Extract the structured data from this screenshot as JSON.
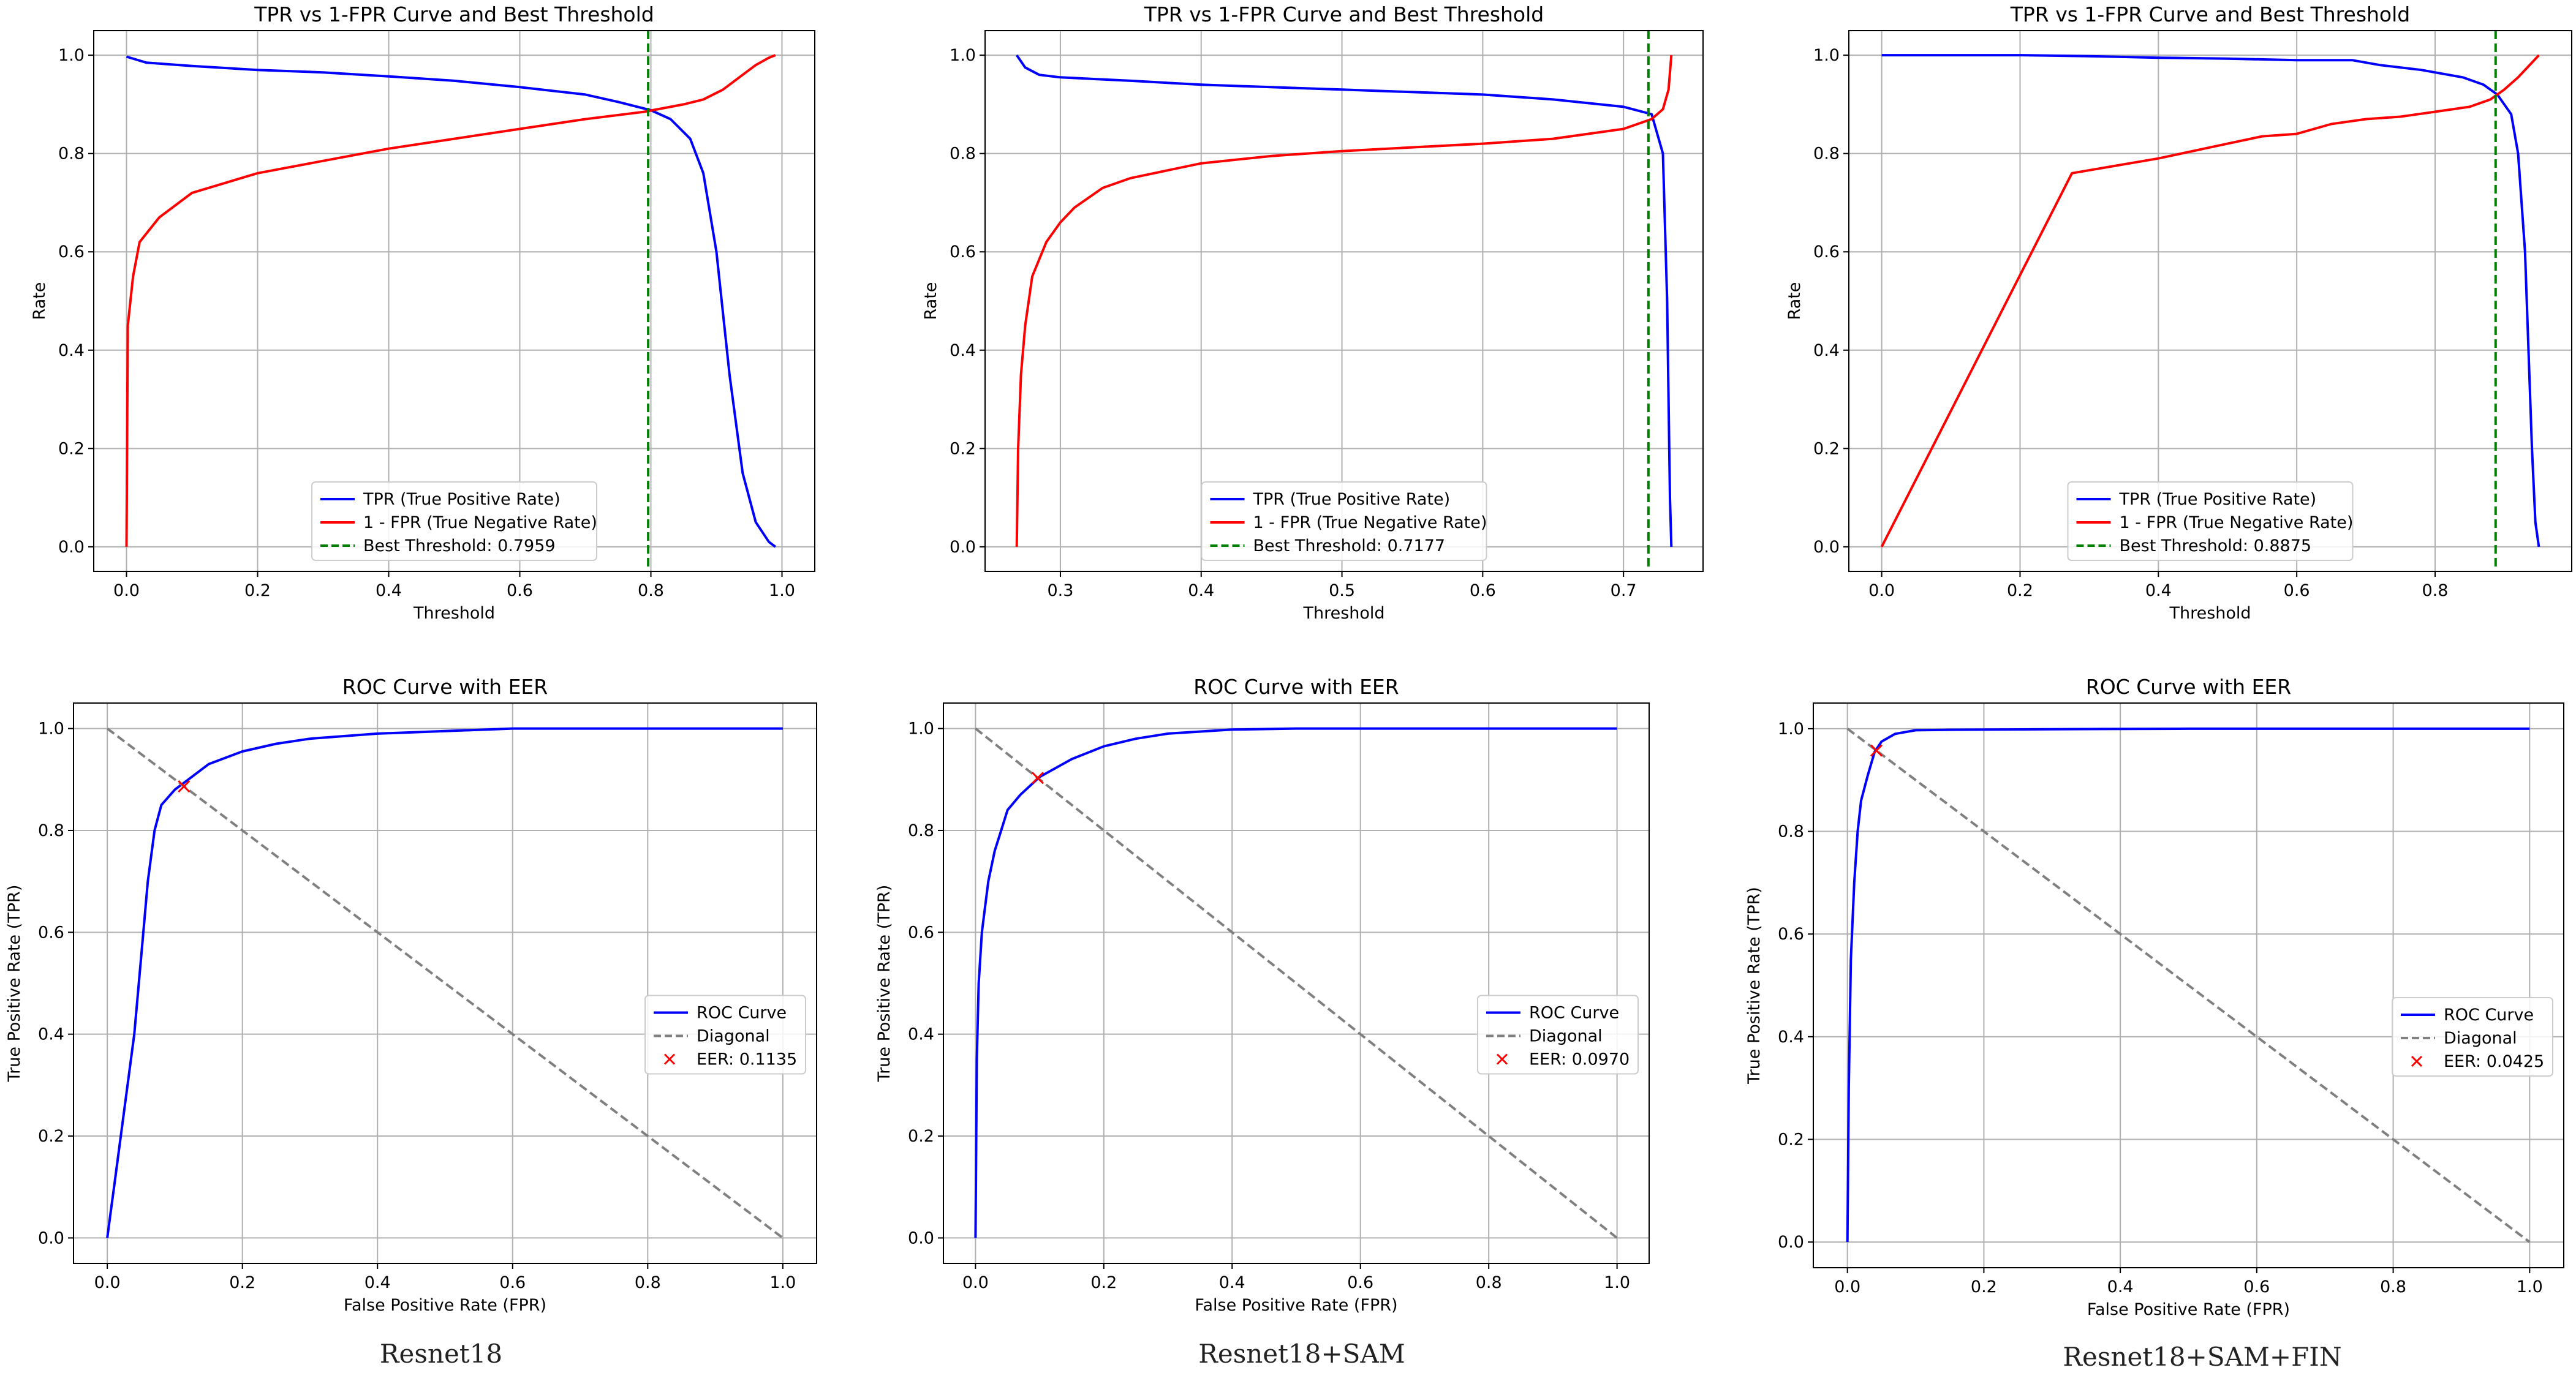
{
  "figure": {
    "captions": [
      "Resnet18",
      "Resnet18+SAM",
      "Resnet18+SAM+FIN"
    ]
  },
  "chart_data": [
    {
      "id": "tpr-resnet18",
      "type": "line",
      "title": "TPR vs 1-FPR Curve and Best Threshold",
      "xlabel": "Threshold",
      "ylabel": "Rate",
      "xlim": [
        -0.05,
        1.05
      ],
      "ylim": [
        -0.05,
        1.05
      ],
      "xticks": [
        0.0,
        0.2,
        0.4,
        0.6,
        0.8,
        1.0
      ],
      "xtick_labels": [
        "0.0",
        "0.2",
        "0.4",
        "0.6",
        "0.8",
        "1.0"
      ],
      "yticks": [
        0.0,
        0.2,
        0.4,
        0.6,
        0.8,
        1.0
      ],
      "ytick_labels": [
        "0.0",
        "0.2",
        "0.4",
        "0.6",
        "0.8",
        "1.0"
      ],
      "grid": true,
      "legend": {
        "placement": "lower-center",
        "entries": [
          "TPR (True Positive Rate)",
          "1 - FPR (True Negative Rate)",
          "Best Threshold: 0.7959"
        ]
      },
      "series": [
        {
          "name": "TPR (True Positive Rate)",
          "color": "#0000ff",
          "style": "solid",
          "x": [
            0.0,
            0.03,
            0.1,
            0.2,
            0.3,
            0.4,
            0.5,
            0.6,
            0.7,
            0.75,
            0.8,
            0.83,
            0.86,
            0.88,
            0.9,
            0.92,
            0.94,
            0.96,
            0.98,
            0.99
          ],
          "y": [
            0.997,
            0.985,
            0.978,
            0.97,
            0.965,
            0.957,
            0.948,
            0.935,
            0.92,
            0.905,
            0.888,
            0.87,
            0.83,
            0.76,
            0.6,
            0.35,
            0.15,
            0.05,
            0.01,
            0.0
          ]
        },
        {
          "name": "1 - FPR (True Negative Rate)",
          "color": "#ff0000",
          "style": "solid",
          "x": [
            0.0,
            0.002,
            0.01,
            0.02,
            0.05,
            0.1,
            0.2,
            0.3,
            0.4,
            0.5,
            0.6,
            0.7,
            0.79,
            0.85,
            0.88,
            0.91,
            0.94,
            0.96,
            0.98,
            0.99
          ],
          "y": [
            0.0,
            0.45,
            0.55,
            0.62,
            0.67,
            0.72,
            0.76,
            0.785,
            0.81,
            0.83,
            0.85,
            0.87,
            0.885,
            0.9,
            0.91,
            0.93,
            0.96,
            0.98,
            0.995,
            1.0
          ]
        }
      ],
      "vline": {
        "x": 0.7959,
        "name": "Best Threshold: 0.7959",
        "color": "#008000"
      }
    },
    {
      "id": "tpr-resnet18-sam",
      "type": "line",
      "title": "TPR vs 1-FPR Curve and Best Threshold",
      "xlabel": "Threshold",
      "ylabel": "Rate",
      "xlim": [
        0.2465,
        0.7565
      ],
      "ylim": [
        -0.05,
        1.05
      ],
      "xticks": [
        0.3,
        0.4,
        0.5,
        0.6,
        0.7
      ],
      "xtick_labels": [
        "0.3",
        "0.4",
        "0.5",
        "0.6",
        "0.7"
      ],
      "yticks": [
        0.0,
        0.2,
        0.4,
        0.6,
        0.8,
        1.0
      ],
      "ytick_labels": [
        "0.0",
        "0.2",
        "0.4",
        "0.6",
        "0.8",
        "1.0"
      ],
      "grid": true,
      "legend": {
        "placement": "lower-center",
        "entries": [
          "TPR (True Positive Rate)",
          "1 - FPR (True Negative Rate)",
          "Best Threshold: 0.7177"
        ]
      },
      "series": [
        {
          "name": "TPR (True Positive Rate)",
          "color": "#0000ff",
          "style": "solid",
          "x": [
            0.269,
            0.275,
            0.285,
            0.3,
            0.35,
            0.4,
            0.5,
            0.6,
            0.65,
            0.7,
            0.72,
            0.728,
            0.731,
            0.733,
            0.734
          ],
          "y": [
            1.0,
            0.975,
            0.96,
            0.955,
            0.948,
            0.94,
            0.93,
            0.92,
            0.91,
            0.895,
            0.88,
            0.8,
            0.5,
            0.1,
            0.0
          ]
        },
        {
          "name": "1 - FPR (True Negative Rate)",
          "color": "#ff0000",
          "style": "solid",
          "x": [
            0.269,
            0.27,
            0.272,
            0.275,
            0.28,
            0.29,
            0.3,
            0.31,
            0.33,
            0.35,
            0.4,
            0.45,
            0.5,
            0.6,
            0.65,
            0.7,
            0.72,
            0.728,
            0.732,
            0.734
          ],
          "y": [
            0.0,
            0.2,
            0.35,
            0.45,
            0.55,
            0.62,
            0.66,
            0.69,
            0.73,
            0.75,
            0.78,
            0.795,
            0.805,
            0.82,
            0.83,
            0.85,
            0.87,
            0.89,
            0.93,
            1.0
          ]
        }
      ],
      "vline": {
        "x": 0.7177,
        "name": "Best Threshold: 0.7177",
        "color": "#008000"
      }
    },
    {
      "id": "tpr-resnet18-sam-fin",
      "type": "line",
      "title": "TPR vs 1-FPR Curve and Best Threshold",
      "xlabel": "Threshold",
      "ylabel": "Rate",
      "xlim": [
        -0.0475,
        0.9975
      ],
      "ylim": [
        -0.05,
        1.05
      ],
      "xticks": [
        0.0,
        0.2,
        0.4,
        0.6,
        0.8
      ],
      "xtick_labels": [
        "0.0",
        "0.2",
        "0.4",
        "0.6",
        "0.8"
      ],
      "yticks": [
        0.0,
        0.2,
        0.4,
        0.6,
        0.8,
        1.0
      ],
      "ytick_labels": [
        "0.0",
        "0.2",
        "0.4",
        "0.6",
        "0.8",
        "1.0"
      ],
      "grid": true,
      "legend": {
        "placement": "lower-center",
        "entries": [
          "TPR (True Positive Rate)",
          "1 - FPR (True Negative Rate)",
          "Best Threshold: 0.8875"
        ]
      },
      "series": [
        {
          "name": "TPR (True Positive Rate)",
          "color": "#0000ff",
          "style": "solid",
          "x": [
            0.0,
            0.2,
            0.3,
            0.4,
            0.5,
            0.6,
            0.68,
            0.72,
            0.78,
            0.84,
            0.87,
            0.89,
            0.91,
            0.92,
            0.93,
            0.94,
            0.945,
            0.95
          ],
          "y": [
            1.0,
            1.0,
            0.998,
            0.995,
            0.993,
            0.99,
            0.99,
            0.98,
            0.97,
            0.955,
            0.94,
            0.92,
            0.88,
            0.8,
            0.6,
            0.2,
            0.05,
            0.0
          ]
        },
        {
          "name": "1 - FPR (True Negative Rate)",
          "color": "#ff0000",
          "style": "solid",
          "x": [
            0.0,
            0.275,
            0.4,
            0.5,
            0.55,
            0.6,
            0.65,
            0.7,
            0.75,
            0.8,
            0.85,
            0.88,
            0.9,
            0.92,
            0.94,
            0.95
          ],
          "y": [
            0.0,
            0.76,
            0.79,
            0.82,
            0.835,
            0.84,
            0.86,
            0.87,
            0.875,
            0.885,
            0.895,
            0.91,
            0.93,
            0.955,
            0.985,
            1.0
          ]
        }
      ],
      "vline": {
        "x": 0.8875,
        "name": "Best Threshold: 0.8875",
        "color": "#008000"
      }
    },
    {
      "id": "roc-resnet18",
      "type": "line",
      "title": "ROC Curve with EER",
      "xlabel": "False Positive Rate (FPR)",
      "ylabel": "True Positive Rate (TPR)",
      "xlim": [
        -0.05,
        1.05
      ],
      "ylim": [
        -0.05,
        1.05
      ],
      "xticks": [
        0.0,
        0.2,
        0.4,
        0.6,
        0.8,
        1.0
      ],
      "xtick_labels": [
        "0.0",
        "0.2",
        "0.4",
        "0.6",
        "0.8",
        "1.0"
      ],
      "yticks": [
        0.0,
        0.2,
        0.4,
        0.6,
        0.8,
        1.0
      ],
      "ytick_labels": [
        "0.0",
        "0.2",
        "0.4",
        "0.6",
        "0.8",
        "1.0"
      ],
      "grid": true,
      "legend": {
        "placement": "center-right",
        "entries": [
          "ROC Curve",
          "Diagonal",
          "EER: 0.1135"
        ]
      },
      "series": [
        {
          "name": "ROC Curve",
          "color": "#0000ff",
          "style": "solid",
          "x": [
            0.0,
            0.005,
            0.01,
            0.02,
            0.03,
            0.04,
            0.05,
            0.06,
            0.07,
            0.08,
            0.1,
            0.12,
            0.15,
            0.2,
            0.25,
            0.3,
            0.4,
            0.5,
            0.6,
            0.8,
            1.0
          ],
          "y": [
            0.0,
            0.05,
            0.1,
            0.2,
            0.3,
            0.4,
            0.55,
            0.7,
            0.8,
            0.85,
            0.88,
            0.9,
            0.93,
            0.955,
            0.97,
            0.98,
            0.99,
            0.995,
            1.0,
            1.0,
            1.0
          ]
        },
        {
          "name": "Diagonal",
          "color": "#808080",
          "style": "dashed",
          "x": [
            0.0,
            1.0
          ],
          "y": [
            1.0,
            0.0
          ]
        }
      ],
      "marker": {
        "name": "EER: 0.1135",
        "x": 0.1135,
        "y": 0.8865,
        "symbol": "x",
        "color": "#ff0000"
      }
    },
    {
      "id": "roc-resnet18-sam",
      "type": "line",
      "title": "ROC Curve with EER",
      "xlabel": "False Positive Rate (FPR)",
      "ylabel": "True Positive Rate (TPR)",
      "xlim": [
        -0.05,
        1.05
      ],
      "ylim": [
        -0.05,
        1.05
      ],
      "xticks": [
        0.0,
        0.2,
        0.4,
        0.6,
        0.8,
        1.0
      ],
      "xtick_labels": [
        "0.0",
        "0.2",
        "0.4",
        "0.6",
        "0.8",
        "1.0"
      ],
      "yticks": [
        0.0,
        0.2,
        0.4,
        0.6,
        0.8,
        1.0
      ],
      "ytick_labels": [
        "0.0",
        "0.2",
        "0.4",
        "0.6",
        "0.8",
        "1.0"
      ],
      "grid": true,
      "legend": {
        "placement": "center-right",
        "entries": [
          "ROC Curve",
          "Diagonal",
          "EER: 0.0970"
        ]
      },
      "series": [
        {
          "name": "ROC Curve",
          "color": "#0000ff",
          "style": "solid",
          "x": [
            0.0,
            0.002,
            0.005,
            0.01,
            0.02,
            0.03,
            0.04,
            0.05,
            0.07,
            0.1,
            0.15,
            0.2,
            0.25,
            0.3,
            0.4,
            0.5,
            0.7,
            1.0
          ],
          "y": [
            0.0,
            0.35,
            0.5,
            0.6,
            0.7,
            0.76,
            0.8,
            0.84,
            0.87,
            0.905,
            0.94,
            0.965,
            0.98,
            0.99,
            0.998,
            1.0,
            1.0,
            1.0
          ]
        },
        {
          "name": "Diagonal",
          "color": "#808080",
          "style": "dashed",
          "x": [
            0.0,
            1.0
          ],
          "y": [
            1.0,
            0.0
          ]
        }
      ],
      "marker": {
        "name": "EER: 0.0970",
        "x": 0.097,
        "y": 0.903,
        "symbol": "x",
        "color": "#ff0000"
      }
    },
    {
      "id": "roc-resnet18-sam-fin",
      "type": "line",
      "title": "ROC Curve with EER",
      "xlabel": "False Positive Rate (FPR)",
      "ylabel": "True Positive Rate (TPR)",
      "xlim": [
        -0.05,
        1.05
      ],
      "ylim": [
        -0.05,
        1.05
      ],
      "xticks": [
        0.0,
        0.2,
        0.4,
        0.6,
        0.8,
        1.0
      ],
      "xtick_labels": [
        "0.0",
        "0.2",
        "0.4",
        "0.6",
        "0.8",
        "1.0"
      ],
      "yticks": [
        0.0,
        0.2,
        0.4,
        0.6,
        0.8,
        1.0
      ],
      "ytick_labels": [
        "0.0",
        "0.2",
        "0.4",
        "0.6",
        "0.8",
        "1.0"
      ],
      "grid": true,
      "legend": {
        "placement": "center-right",
        "entries": [
          "ROC Curve",
          "Diagonal",
          "EER: 0.0425"
        ]
      },
      "series": [
        {
          "name": "ROC Curve",
          "color": "#0000ff",
          "style": "solid",
          "x": [
            0.0,
            0.002,
            0.005,
            0.01,
            0.015,
            0.02,
            0.03,
            0.04,
            0.05,
            0.07,
            0.1,
            0.15,
            0.3,
            0.5,
            1.0
          ],
          "y": [
            0.0,
            0.3,
            0.55,
            0.7,
            0.8,
            0.86,
            0.91,
            0.955,
            0.975,
            0.99,
            0.997,
            0.998,
            0.999,
            1.0,
            1.0
          ]
        },
        {
          "name": "Diagonal",
          "color": "#808080",
          "style": "dashed",
          "x": [
            0.0,
            1.0
          ],
          "y": [
            1.0,
            0.0
          ]
        }
      ],
      "marker": {
        "name": "EER: 0.0425",
        "x": 0.0425,
        "y": 0.9575,
        "symbol": "x",
        "color": "#ff0000"
      }
    }
  ]
}
